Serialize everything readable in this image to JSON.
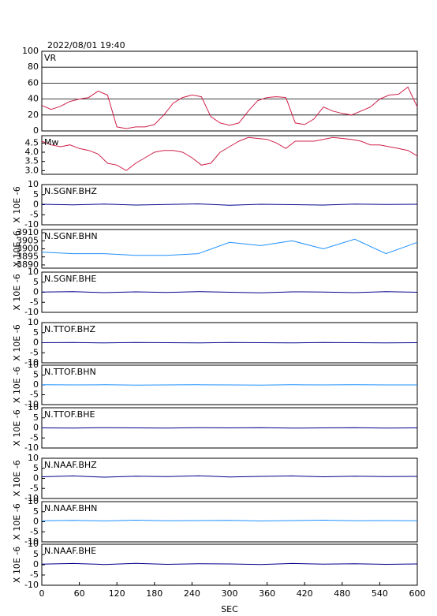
{
  "header": {
    "title": "2022/08/01 19:40"
  },
  "chart_data": [
    {
      "type": "line",
      "title": "VR",
      "color": "#d0204a",
      "grid": true,
      "x": [
        0,
        15,
        30,
        45,
        60,
        75,
        90,
        105,
        120,
        135,
        150,
        165,
        180,
        195,
        210,
        225,
        240,
        255,
        270,
        285,
        300,
        315,
        330,
        345,
        360,
        375,
        390,
        405,
        420,
        435,
        450,
        465,
        480,
        495,
        510,
        525,
        540,
        555,
        570,
        585,
        600
      ],
      "values": [
        32,
        27,
        31,
        37,
        40,
        42,
        50,
        45,
        5,
        3,
        5,
        5,
        8,
        20,
        35,
        42,
        45,
        43,
        18,
        10,
        7,
        10,
        25,
        38,
        42,
        43,
        42,
        10,
        8,
        15,
        30,
        25,
        22,
        20,
        25,
        30,
        40,
        45,
        46,
        55,
        30
      ],
      "xlim": [
        0,
        600
      ],
      "ylim": [
        0,
        100
      ],
      "yticks": [
        0,
        20,
        40,
        60,
        80,
        100
      ]
    },
    {
      "type": "line",
      "title": "Mw",
      "color": "#d0204a",
      "x": [
        0,
        15,
        30,
        45,
        60,
        75,
        90,
        105,
        120,
        135,
        150,
        165,
        180,
        195,
        210,
        225,
        240,
        255,
        270,
        285,
        300,
        315,
        330,
        345,
        360,
        375,
        390,
        405,
        420,
        435,
        450,
        465,
        480,
        495,
        510,
        525,
        540,
        555,
        570,
        585,
        600
      ],
      "values": [
        4.6,
        4.4,
        4.3,
        4.4,
        4.2,
        4.1,
        3.9,
        3.4,
        3.3,
        3.0,
        3.4,
        3.7,
        4.0,
        4.1,
        4.1,
        4.0,
        3.7,
        3.3,
        3.4,
        4.0,
        4.3,
        4.6,
        4.8,
        4.75,
        4.7,
        4.5,
        4.2,
        4.6,
        4.6,
        4.6,
        4.7,
        4.8,
        4.75,
        4.7,
        4.6,
        4.4,
        4.4,
        4.3,
        4.2,
        4.1,
        3.8
      ],
      "xlim": [
        0,
        600
      ],
      "ylim": [
        2.8,
        4.9
      ],
      "yticks": [
        {
          "value": 3,
          "label": "3.0"
        },
        3.5,
        {
          "value": 4,
          "label": "4.0"
        },
        4.5
      ]
    },
    {
      "type": "line",
      "title": "N.SGNF.BHZ",
      "ylabel": "X 10E -6",
      "color": "#00008b",
      "x": [
        0,
        50,
        100,
        150,
        200,
        250,
        300,
        350,
        400,
        450,
        500,
        550,
        600
      ],
      "values": [
        0.2,
        -0.1,
        0.3,
        -0.2,
        0.1,
        0.4,
        -0.3,
        0.2,
        0,
        -0.2,
        0.3,
        0.1,
        0.2
      ],
      "xlim": [
        0,
        600
      ],
      "ylim": [
        -10,
        10
      ],
      "yticks": [
        -10,
        -5,
        0,
        5,
        10
      ]
    },
    {
      "type": "line",
      "title": "N.SGNF.BHN",
      "ylabel": "X 10E -6",
      "color": "#1e90ff",
      "x": [
        0,
        50,
        100,
        150,
        200,
        250,
        300,
        350,
        400,
        450,
        500,
        550,
        600
      ],
      "values": [
        3898,
        3897,
        3897,
        3896,
        3896,
        3897,
        3904,
        3902,
        3905,
        3900,
        3906,
        3897,
        3904
      ],
      "xlim": [
        0,
        600
      ],
      "ylim": [
        3888,
        3912
      ],
      "yticks": [
        3890,
        3895,
        3900,
        3905,
        3910
      ]
    },
    {
      "type": "line",
      "title": "N.SGNF.BHE",
      "ylabel": "X 10E -6",
      "color": "#00008b",
      "x": [
        0,
        50,
        100,
        150,
        200,
        250,
        300,
        350,
        400,
        450,
        500,
        550,
        600
      ],
      "values": [
        0.1,
        0.3,
        -0.2,
        0.2,
        -0.1,
        0.3,
        0,
        -0.3,
        0.2,
        0.1,
        -0.2,
        0.3,
        0
      ],
      "xlim": [
        0,
        600
      ],
      "ylim": [
        -10,
        10
      ],
      "yticks": [
        -10,
        -5,
        0,
        5,
        10
      ]
    },
    {
      "type": "line",
      "title": "N.TTOF.BHZ",
      "ylabel": "X 10E -6",
      "color": "#00008b",
      "x": [
        0,
        50,
        100,
        150,
        200,
        250,
        300,
        350,
        400,
        450,
        500,
        550,
        600
      ],
      "values": [
        0,
        0.1,
        -0.1,
        0.1,
        0,
        -0.1,
        0.1,
        0,
        -0.1,
        0.1,
        0,
        -0.1,
        0
      ],
      "xlim": [
        0,
        600
      ],
      "ylim": [
        -10,
        10
      ],
      "yticks": [
        -10,
        -5,
        0,
        5,
        10
      ]
    },
    {
      "type": "line",
      "title": "N.TTOF.BHN",
      "ylabel": "X 10E -6",
      "color": "#1e90ff",
      "x": [
        0,
        50,
        100,
        150,
        200,
        250,
        300,
        350,
        400,
        450,
        500,
        550,
        600
      ],
      "values": [
        0.1,
        0,
        0.1,
        -0.1,
        0,
        0.1,
        0,
        -0.1,
        0.1,
        0,
        0.1,
        0,
        0
      ],
      "xlim": [
        0,
        600
      ],
      "ylim": [
        -10,
        10
      ],
      "yticks": [
        -10,
        -5,
        0,
        5,
        10
      ]
    },
    {
      "type": "line",
      "title": "N.TTOF.BHE",
      "ylabel": "X 10E -6",
      "color": "#00008b",
      "x": [
        0,
        50,
        100,
        150,
        200,
        250,
        300,
        350,
        400,
        450,
        500,
        550,
        600
      ],
      "values": [
        0,
        -0.1,
        0.1,
        0,
        -0.1,
        0.1,
        0,
        0.1,
        -0.1,
        0,
        0.1,
        -0.1,
        0
      ],
      "xlim": [
        0,
        600
      ],
      "ylim": [
        -10,
        10
      ],
      "yticks": [
        -10,
        -5,
        0,
        5,
        10
      ]
    },
    {
      "type": "line",
      "title": "N.NAAF.BHZ",
      "ylabel": "X 10E -6",
      "color": "#00008b",
      "x": [
        0,
        50,
        100,
        150,
        200,
        250,
        300,
        350,
        400,
        450,
        500,
        550,
        600
      ],
      "values": [
        0.8,
        1.2,
        0.6,
        1.1,
        0.9,
        1.3,
        0.7,
        1.0,
        1.2,
        0.8,
        1.1,
        0.9,
        1.0
      ],
      "xlim": [
        0,
        600
      ],
      "ylim": [
        -10,
        10
      ],
      "yticks": [
        -10,
        -5,
        0,
        5,
        10
      ]
    },
    {
      "type": "line",
      "title": "N.NAAF.BHN",
      "ylabel": "X 10E -6",
      "color": "#1e90ff",
      "x": [
        0,
        50,
        100,
        150,
        200,
        250,
        300,
        350,
        400,
        450,
        500,
        550,
        600
      ],
      "values": [
        0.5,
        0.7,
        0.4,
        0.8,
        0.5,
        0.6,
        0.7,
        0.4,
        0.6,
        0.8,
        0.5,
        0.6,
        0.5
      ],
      "xlim": [
        0,
        600
      ],
      "ylim": [
        -10,
        10
      ],
      "yticks": [
        -10,
        -5,
        0,
        5,
        10
      ]
    },
    {
      "type": "line",
      "title": "N.NAAF.BHE",
      "ylabel": "X 10E -6",
      "color": "#00008b",
      "x": [
        0,
        50,
        100,
        150,
        200,
        250,
        300,
        350,
        400,
        450,
        500,
        550,
        600
      ],
      "values": [
        0.3,
        0.6,
        0.1,
        0.7,
        0.2,
        0.5,
        0.4,
        0.1,
        0.6,
        0.3,
        0.5,
        0.2,
        0.4
      ],
      "xlim": [
        0,
        600
      ],
      "ylim": [
        -10,
        10
      ],
      "yticks": [
        -10,
        -5,
        0,
        5,
        10
      ],
      "xlabel": "SEC",
      "xticks": [
        0,
        60,
        120,
        180,
        240,
        300,
        360,
        420,
        480,
        540,
        600
      ]
    }
  ]
}
